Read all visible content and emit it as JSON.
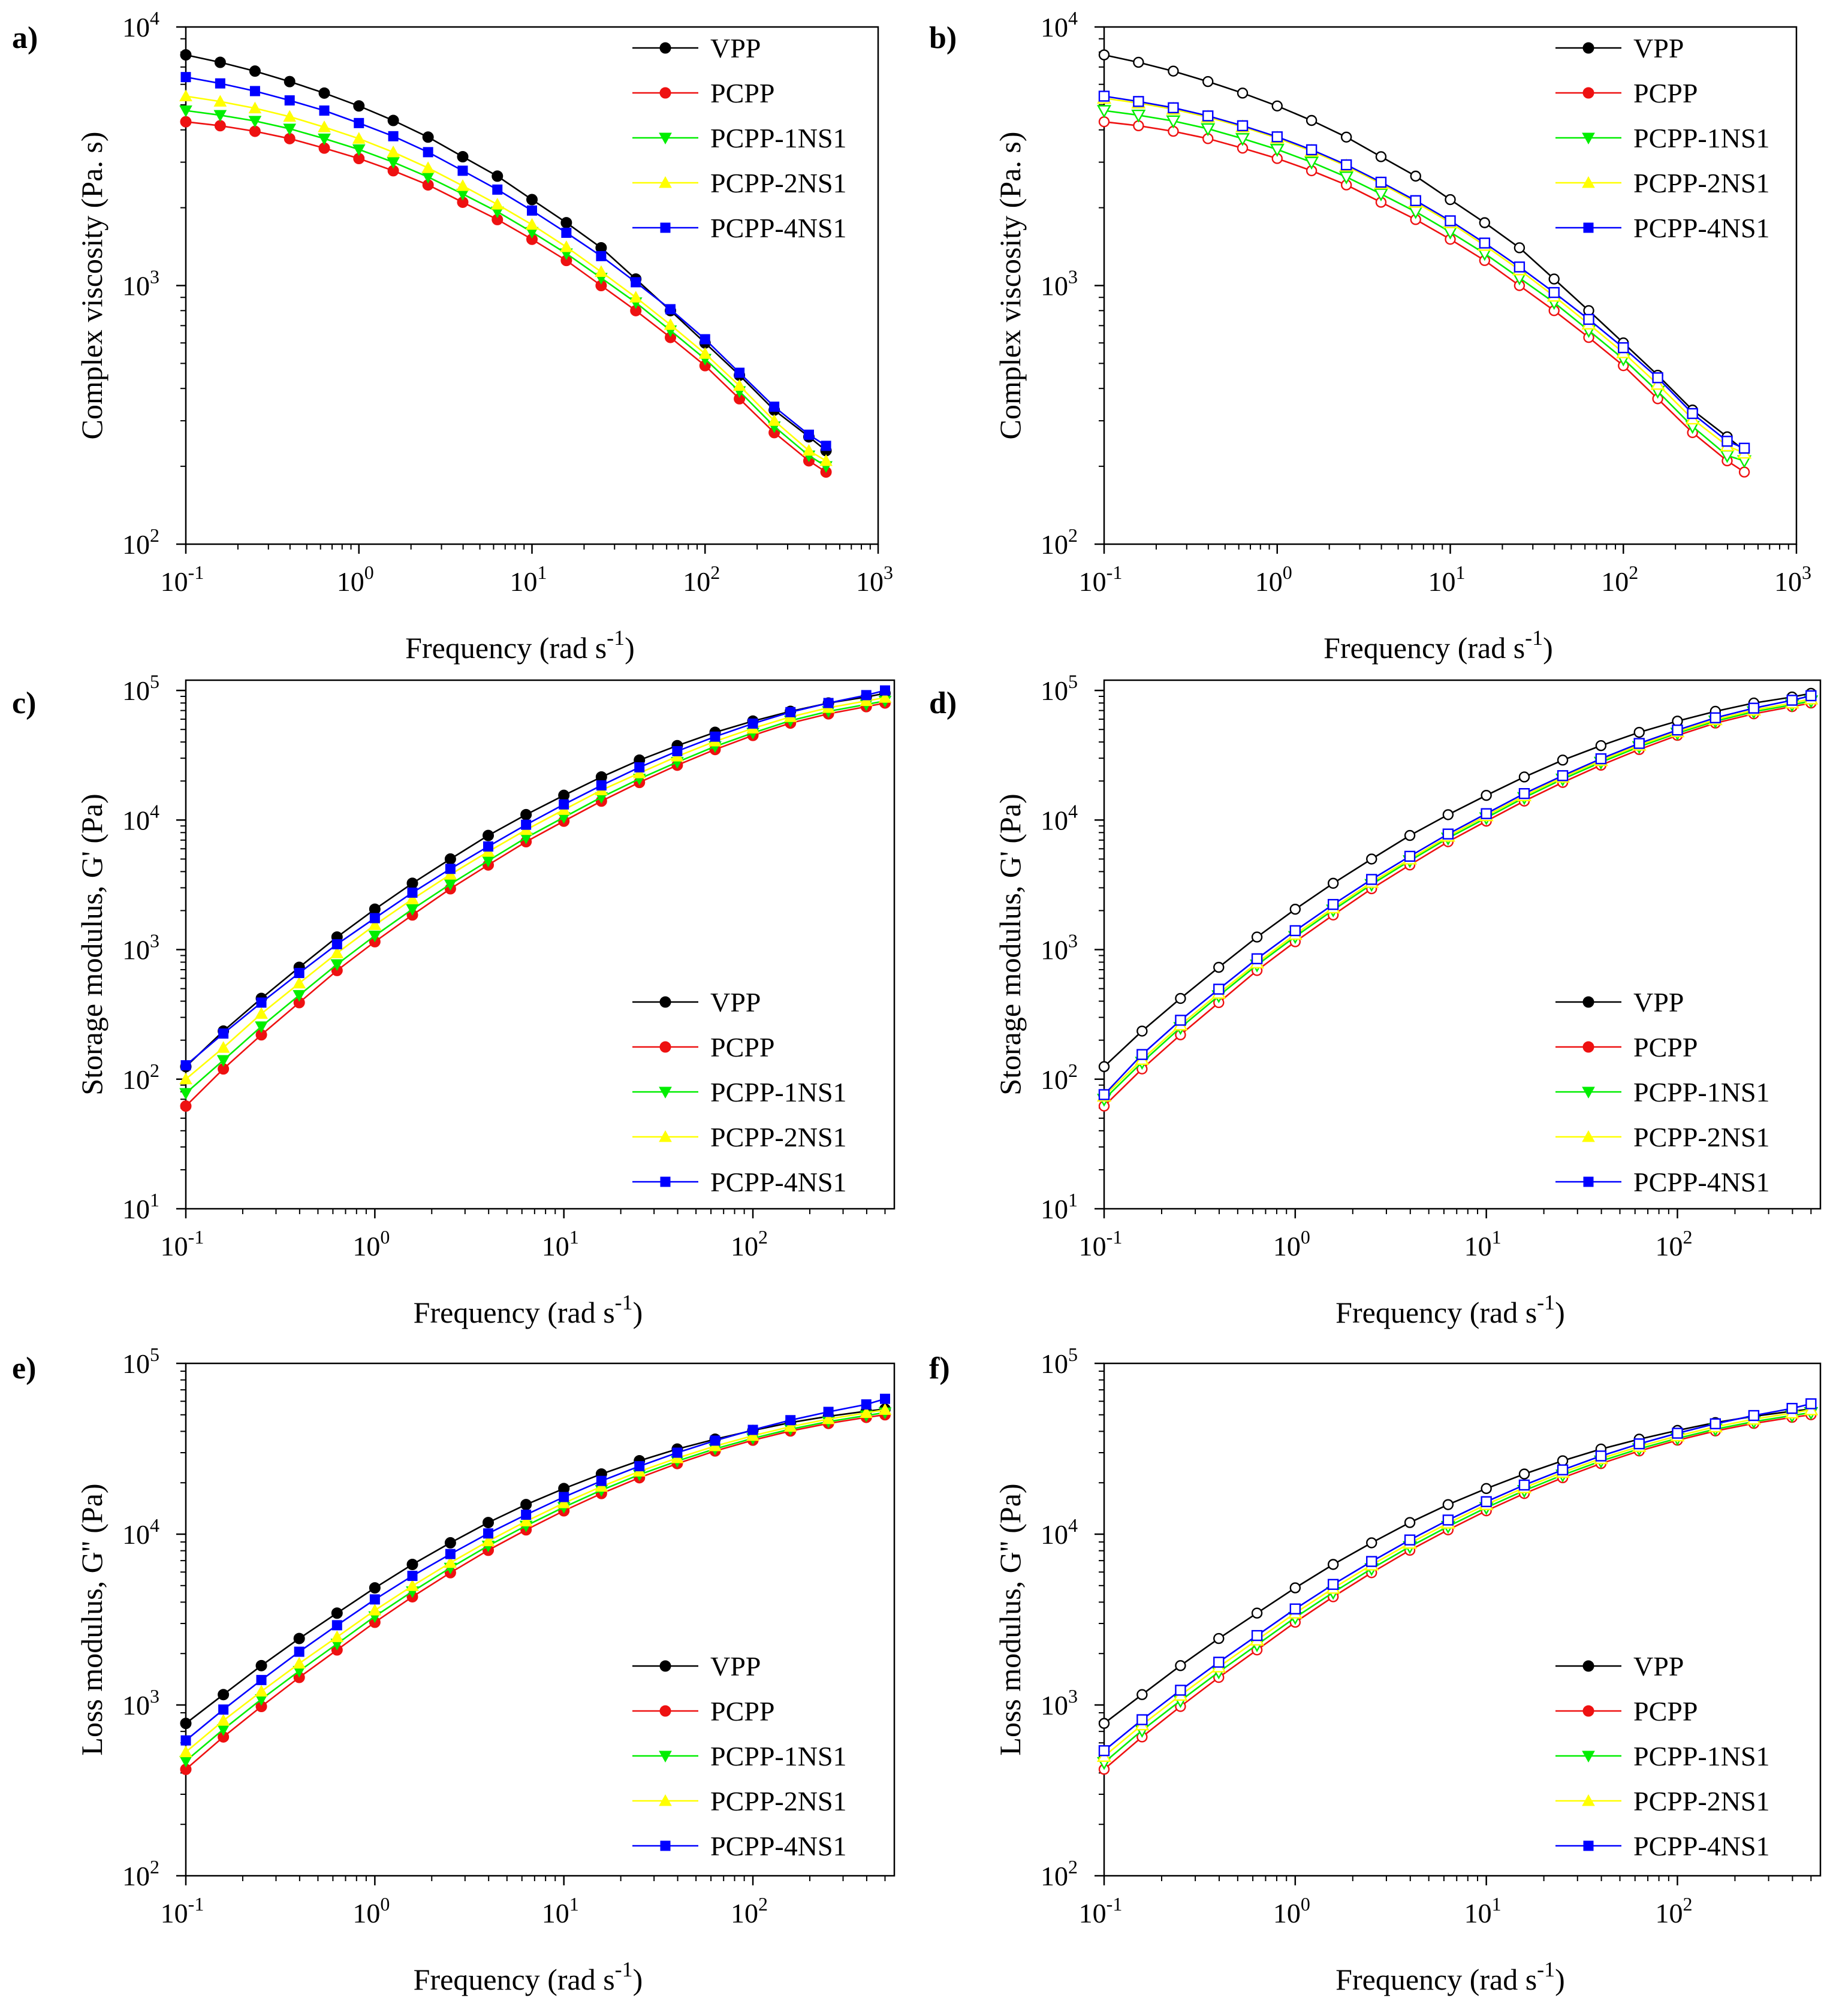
{
  "chart_data": [
    {
      "panel": "a)",
      "type": "line",
      "xlabel": "Frequency (rad s",
      "xlabel_sup": "-1",
      "ylabel": "Complex viscosity (Pa. s)",
      "xscale": "log",
      "yscale": "log",
      "xlim": [
        0.1,
        1000
      ],
      "ylim": [
        100,
        10000
      ],
      "xtick_exps": [
        -1,
        0,
        1,
        2,
        3
      ],
      "ytick_exps": [
        2,
        3,
        4
      ],
      "legend_position": "top-right",
      "marker": "filled",
      "x": [
        0.1,
        0.158,
        0.251,
        0.398,
        0.631,
        1.0,
        1.58,
        2.51,
        3.98,
        6.31,
        10,
        15.8,
        25.1,
        39.8,
        63.1,
        100,
        158,
        251,
        398,
        500
      ],
      "series": [
        {
          "name": "VPP",
          "color": "#000000",
          "values": [
            7800,
            7300,
            6750,
            6150,
            5550,
            4950,
            4350,
            3750,
            3150,
            2650,
            2150,
            1750,
            1400,
            1060,
            800,
            600,
            450,
            330,
            260,
            230
          ]
        },
        {
          "name": "PCPP",
          "color": "#ee1111",
          "values": [
            4300,
            4150,
            3950,
            3700,
            3400,
            3100,
            2780,
            2450,
            2100,
            1800,
            1510,
            1250,
            1000,
            800,
            630,
            490,
            365,
            270,
            210,
            190
          ]
        },
        {
          "name": "PCPP-1NS1",
          "color": "#00ee00",
          "values": [
            4750,
            4560,
            4330,
            4040,
            3700,
            3360,
            3000,
            2630,
            2260,
            1930,
            1610,
            1330,
            1070,
            860,
            670,
            520,
            390,
            285,
            220,
            200
          ]
        },
        {
          "name": "PCPP-2NS1",
          "color": "#ffff00",
          "values": [
            5400,
            5150,
            4850,
            4500,
            4100,
            3700,
            3280,
            2850,
            2430,
            2060,
            1720,
            1410,
            1130,
            900,
            705,
            545,
            410,
            300,
            230,
            210
          ]
        },
        {
          "name": "PCPP-4NS1",
          "color": "#0000ff",
          "values": [
            6400,
            6050,
            5650,
            5200,
            4750,
            4250,
            3780,
            3280,
            2780,
            2350,
            1950,
            1600,
            1300,
            1030,
            810,
            620,
            460,
            340,
            265,
            240
          ]
        }
      ]
    },
    {
      "panel": "b)",
      "type": "line",
      "xlabel": "Frequency (rad s",
      "xlabel_sup": "-1",
      "ylabel": "Complex viscosity (Pa. s)",
      "xscale": "log",
      "yscale": "log",
      "xlim": [
        0.1,
        1000
      ],
      "ylim": [
        100,
        10000
      ],
      "xtick_exps": [
        -1,
        0,
        1,
        2,
        3
      ],
      "ytick_exps": [
        2,
        3,
        4
      ],
      "legend_position": "top-right",
      "marker": "open",
      "x": [
        0.1,
        0.158,
        0.251,
        0.398,
        0.631,
        1.0,
        1.58,
        2.51,
        3.98,
        6.31,
        10,
        15.8,
        25.1,
        39.8,
        63.1,
        100,
        158,
        251,
        398,
        500
      ],
      "series": [
        {
          "name": "VPP",
          "color": "#000000",
          "values": [
            7800,
            7300,
            6750,
            6150,
            5550,
            4950,
            4350,
            3750,
            3150,
            2650,
            2150,
            1750,
            1400,
            1060,
            800,
            600,
            450,
            330,
            260,
            230
          ]
        },
        {
          "name": "PCPP",
          "color": "#ee1111",
          "values": [
            4300,
            4150,
            3950,
            3700,
            3400,
            3100,
            2780,
            2450,
            2100,
            1800,
            1510,
            1250,
            1000,
            800,
            630,
            490,
            365,
            270,
            210,
            190
          ]
        },
        {
          "name": "PCPP-1NS1",
          "color": "#00ee00",
          "values": [
            4750,
            4560,
            4330,
            4040,
            3700,
            3360,
            3000,
            2630,
            2260,
            1930,
            1610,
            1330,
            1070,
            860,
            670,
            520,
            390,
            285,
            220,
            210
          ]
        },
        {
          "name": "PCPP-2NS1",
          "color": "#ffff00",
          "values": [
            5300,
            5080,
            4810,
            4480,
            4110,
            3720,
            3310,
            2900,
            2480,
            2100,
            1750,
            1430,
            1150,
            910,
            710,
            550,
            415,
            305,
            240,
            225
          ]
        },
        {
          "name": "PCPP-4NS1",
          "color": "#0000ff",
          "values": [
            5400,
            5150,
            4870,
            4530,
            4150,
            3760,
            3350,
            2930,
            2510,
            2130,
            1780,
            1460,
            1180,
            940,
            740,
            575,
            440,
            320,
            250,
            235
          ]
        }
      ]
    },
    {
      "panel": "c)",
      "type": "line",
      "xlabel": "Frequency (rad s",
      "xlabel_sup": "-1",
      "ylabel": "Storage modulus, G' (Pa)",
      "xscale": "log",
      "yscale": "log",
      "xlim": [
        0.1,
        560
      ],
      "ylim": [
        10,
        120000
      ],
      "xtick_exps": [
        -1,
        0,
        1,
        2
      ],
      "ytick_exps": [
        1,
        2,
        3,
        4,
        5
      ],
      "legend_position": "bottom-right",
      "marker": "filled",
      "x": [
        0.1,
        0.158,
        0.251,
        0.398,
        0.631,
        1.0,
        1.58,
        2.51,
        3.98,
        6.31,
        10,
        15.8,
        25.1,
        39.8,
        63.1,
        100,
        158,
        251,
        398,
        500
      ],
      "series": [
        {
          "name": "VPP",
          "color": "#000000",
          "values": [
            125,
            235,
            420,
            730,
            1250,
            2050,
            3250,
            5000,
            7600,
            11000,
            15500,
            21500,
            29000,
            37500,
            47500,
            58000,
            69000,
            80000,
            89000,
            95000
          ]
        },
        {
          "name": "PCPP",
          "color": "#ee1111",
          "values": [
            62,
            120,
            220,
            390,
            690,
            1150,
            1850,
            2950,
            4500,
            6800,
            9800,
            14000,
            19500,
            26500,
            35000,
            45000,
            56000,
            66000,
            75000,
            80000
          ]
        },
        {
          "name": "PCPP-1NS1",
          "color": "#00ee00",
          "values": [
            78,
            140,
            255,
            445,
            770,
            1280,
            2050,
            3200,
            4850,
            7300,
            10500,
            15000,
            20800,
            28000,
            37000,
            47000,
            58500,
            69000,
            78000,
            83000
          ]
        },
        {
          "name": "PCPP-2NS1",
          "color": "#ffff00",
          "values": [
            100,
            175,
            320,
            550,
            940,
            1550,
            2450,
            3800,
            5700,
            8400,
            12000,
            17000,
            23000,
            31000,
            40500,
            51000,
            62500,
            73500,
            83000,
            88000
          ]
        },
        {
          "name": "PCPP-4NS1",
          "color": "#0000ff",
          "values": [
            128,
            225,
            390,
            660,
            1100,
            1750,
            2750,
            4200,
            6250,
            9200,
            13200,
            18500,
            25500,
            34000,
            44000,
            55500,
            68000,
            80000,
            92000,
            100000
          ]
        }
      ]
    },
    {
      "panel": "d)",
      "type": "line",
      "xlabel": "Frequency (rad s",
      "xlabel_sup": "-1",
      "ylabel": "Storage modulus, G' (Pa)",
      "xscale": "log",
      "yscale": "log",
      "xlim": [
        0.1,
        560
      ],
      "ylim": [
        10,
        120000
      ],
      "xtick_exps": [
        -1,
        0,
        1,
        2
      ],
      "ytick_exps": [
        1,
        2,
        3,
        4,
        5
      ],
      "legend_position": "bottom-right",
      "marker": "open",
      "x": [
        0.1,
        0.158,
        0.251,
        0.398,
        0.631,
        1.0,
        1.58,
        2.51,
        3.98,
        6.31,
        10,
        15.8,
        25.1,
        39.8,
        63.1,
        100,
        158,
        251,
        398,
        500
      ],
      "series": [
        {
          "name": "VPP",
          "color": "#000000",
          "values": [
            125,
            235,
            420,
            730,
            1250,
            2050,
            3250,
            5000,
            7600,
            11000,
            15500,
            21500,
            29000,
            37500,
            47500,
            58000,
            69000,
            80000,
            89000,
            95000
          ]
        },
        {
          "name": "PCPP",
          "color": "#ee1111",
          "values": [
            62,
            120,
            220,
            390,
            690,
            1150,
            1850,
            2950,
            4500,
            6800,
            9800,
            14000,
            19500,
            26500,
            35000,
            45000,
            56000,
            66000,
            75000,
            80000
          ]
        },
        {
          "name": "PCPP-1NS1",
          "color": "#00ee00",
          "values": [
            70,
            135,
            250,
            440,
            760,
            1260,
            2020,
            3180,
            4850,
            7250,
            10400,
            14900,
            20700,
            27900,
            36800,
            46800,
            58000,
            68500,
            77500,
            83000
          ]
        },
        {
          "name": "PCPP-2NS1",
          "color": "#ffff00",
          "values": [
            74,
            142,
            262,
            460,
            790,
            1310,
            2100,
            3300,
            5000,
            7500,
            10800,
            15400,
            21400,
            28800,
            37800,
            48000,
            59500,
            70500,
            80000,
            86000
          ]
        },
        {
          "name": "PCPP-4NS1",
          "color": "#0000ff",
          "values": [
            76,
            155,
            285,
            495,
            850,
            1400,
            2230,
            3480,
            5250,
            7800,
            11200,
            16000,
            22000,
            29700,
            39000,
            49500,
            61500,
            73000,
            84000,
            91000
          ]
        }
      ]
    },
    {
      "panel": "e)",
      "type": "line",
      "xlabel": "Frequency (rad s",
      "xlabel_sup": "-1",
      "ylabel": "Loss modulus, G'' (Pa)",
      "xscale": "log",
      "yscale": "log",
      "xlim": [
        0.1,
        560
      ],
      "ylim": [
        100,
        100000
      ],
      "xtick_exps": [
        -1,
        0,
        1,
        2
      ],
      "ytick_exps": [
        2,
        3,
        4,
        5
      ],
      "legend_position": "bottom-right",
      "marker": "filled",
      "x": [
        0.1,
        0.158,
        0.251,
        0.398,
        0.631,
        1.0,
        1.58,
        2.51,
        3.98,
        6.31,
        10,
        15.8,
        25.1,
        39.8,
        63.1,
        100,
        158,
        251,
        398,
        500
      ],
      "series": [
        {
          "name": "VPP",
          "color": "#000000",
          "values": [
            780,
            1150,
            1700,
            2450,
            3450,
            4850,
            6650,
            8900,
            11700,
            14900,
            18500,
            22500,
            26900,
            31500,
            36000,
            40500,
            45000,
            49000,
            52500,
            54000
          ]
        },
        {
          "name": "PCPP",
          "color": "#ee1111",
          "values": [
            420,
            650,
            980,
            1450,
            2100,
            3050,
            4300,
            5950,
            8050,
            10600,
            13700,
            17300,
            21400,
            25900,
            30700,
            35500,
            40200,
            44500,
            48300,
            50000
          ]
        },
        {
          "name": "PCPP-1NS1",
          "color": "#00ee00",
          "values": [
            470,
            720,
            1080,
            1580,
            2280,
            3300,
            4620,
            6350,
            8550,
            11200,
            14400,
            18100,
            22300,
            26800,
            31600,
            36400,
            41200,
            45600,
            49500,
            51500
          ]
        },
        {
          "name": "PCPP-2NS1",
          "color": "#ffff00",
          "values": [
            530,
            810,
            1200,
            1750,
            2500,
            3580,
            4980,
            6800,
            9100,
            11900,
            15200,
            19000,
            23300,
            27900,
            32800,
            37700,
            42600,
            47200,
            51300,
            53500
          ]
        },
        {
          "name": "PCPP-4NS1",
          "color": "#0000ff",
          "values": [
            620,
            940,
            1400,
            2050,
            2930,
            4150,
            5700,
            7650,
            10100,
            13000,
            16500,
            20500,
            25000,
            30000,
            35300,
            40800,
            46500,
            52000,
            57500,
            62000
          ]
        }
      ]
    },
    {
      "panel": "f)",
      "type": "line",
      "xlabel": "Frequency (rad s",
      "xlabel_sup": "-1",
      "ylabel": "Loss modulus, G'' (Pa)",
      "xscale": "log",
      "yscale": "log",
      "xlim": [
        0.1,
        560
      ],
      "ylim": [
        100,
        100000
      ],
      "xtick_exps": [
        -1,
        0,
        1,
        2
      ],
      "ytick_exps": [
        2,
        3,
        4,
        5
      ],
      "legend_position": "bottom-right",
      "marker": "open",
      "x": [
        0.1,
        0.158,
        0.251,
        0.398,
        0.631,
        1.0,
        1.58,
        2.51,
        3.98,
        6.31,
        10,
        15.8,
        25.1,
        39.8,
        63.1,
        100,
        158,
        251,
        398,
        500
      ],
      "series": [
        {
          "name": "VPP",
          "color": "#000000",
          "values": [
            780,
            1150,
            1700,
            2450,
            3450,
            4850,
            6650,
            8900,
            11700,
            14900,
            18500,
            22500,
            26900,
            31500,
            36000,
            40500,
            45000,
            49000,
            52500,
            54000
          ]
        },
        {
          "name": "PCPP",
          "color": "#ee1111",
          "values": [
            420,
            650,
            980,
            1450,
            2100,
            3050,
            4300,
            5950,
            8050,
            10600,
            13700,
            17300,
            21400,
            25900,
            30700,
            35500,
            40200,
            44500,
            48300,
            50000
          ]
        },
        {
          "name": "PCPP-1NS1",
          "color": "#00ee00",
          "values": [
            460,
            710,
            1060,
            1560,
            2250,
            3250,
            4560,
            6280,
            8450,
            11100,
            14300,
            18000,
            22200,
            26800,
            31600,
            36400,
            41200,
            45600,
            49500,
            51500
          ]
        },
        {
          "name": "PCPP-2NS1",
          "color": "#ffff00",
          "values": [
            500,
            765,
            1140,
            1670,
            2400,
            3450,
            4820,
            6600,
            8850,
            11600,
            14900,
            18700,
            23000,
            27700,
            32600,
            37600,
            42500,
            47100,
            51200,
            53500
          ]
        },
        {
          "name": "PCPP-4NS1",
          "color": "#0000ff",
          "values": [
            540,
            820,
            1220,
            1780,
            2550,
            3650,
            5080,
            6920,
            9250,
            12100,
            15500,
            19400,
            23800,
            28700,
            33800,
            39000,
            44300,
            49500,
            54500,
            58000
          ]
        }
      ]
    }
  ]
}
